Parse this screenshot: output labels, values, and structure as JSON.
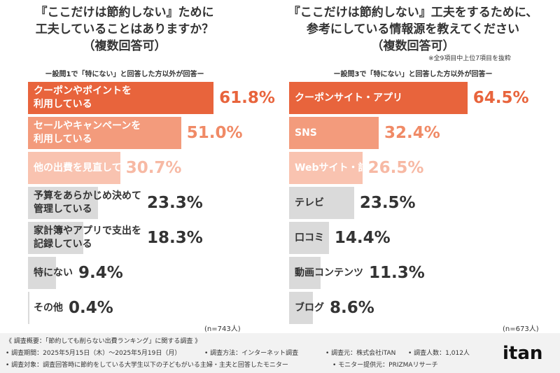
{
  "chart_data": [
    {
      "type": "bar",
      "orientation": "horizontal",
      "title": "『ここだけは節約しない』ために\n工夫していることはありますか？\n（複数回答可）",
      "note": "ー設問1で「特にない」と回答した方以外が回答ー",
      "categories": [
        "クーポンやポイントを\n利用している",
        "セールやキャンペーンを\n利用している",
        "他の出費を見直している",
        "予算をあらかじめ決めて\n管理している",
        "家計簿やアプリで支出を\n記録している",
        "特にない",
        "その他"
      ],
      "values": [
        61.8,
        51.0,
        30.7,
        23.3,
        18.3,
        9.4,
        0.4
      ],
      "value_labels": [
        "61.8%",
        "51.0%",
        "30.7%",
        "23.3%",
        "18.3%",
        "9.4%",
        "0.4%"
      ],
      "colors": [
        "#e8643c",
        "#f39b7c",
        "#f9c3b0",
        "#dadada",
        "#dadada",
        "#dadada",
        "#dadada"
      ],
      "label_colors": [
        "#e8643c",
        "#f08a66",
        "#f7b9a4",
        "#333333",
        "#333333",
        "#333333",
        "#333333"
      ],
      "sample": "(n=743人)"
    },
    {
      "type": "bar",
      "orientation": "horizontal",
      "title": "『ここだけは節約しない』工夫をするために、\n参考にしている情報源を教えてください\n（複数回答可）",
      "annotation": "※全9項目中上位7項目を抜粋",
      "note": "ー設問3で「特にない」と回答した方以外が回答ー",
      "categories": [
        "クーポンサイト・アプリ",
        "SNS",
        "Webサイト・記事",
        "テレビ",
        "口コミ",
        "動画コンテンツ",
        "ブログ"
      ],
      "values": [
        64.5,
        32.4,
        26.5,
        23.5,
        14.4,
        11.3,
        8.6
      ],
      "value_labels": [
        "64.5%",
        "32.4%",
        "26.5%",
        "23.5%",
        "14.4%",
        "11.3%",
        "8.6%"
      ],
      "colors": [
        "#e8643c",
        "#f39b7c",
        "#f9c3b0",
        "#dadada",
        "#dadada",
        "#dadada",
        "#dadada"
      ],
      "label_colors": [
        "#e8643c",
        "#f08a66",
        "#f7b9a4",
        "#333333",
        "#333333",
        "#333333",
        "#333333"
      ],
      "sample": "(n=673人)"
    }
  ],
  "footer": {
    "heading": "《 調査概要：「節約しても削らない出費ランキング」に関する調査 》",
    "items": [
      "• 調査期間：2025年5月15日（木）～2025年5月19日（月）",
      "• 調査方法：インターネット調査",
      "• 調査元：株式会社iTAN",
      "• 調査人数：1,012人",
      "• 調査対象：調査回答時に節約をしている大学生以下の子どもがいる主婦・主夫と回答したモニター",
      "• モニター提供元：PRIZMAリサーチ"
    ],
    "logo": "itan"
  }
}
